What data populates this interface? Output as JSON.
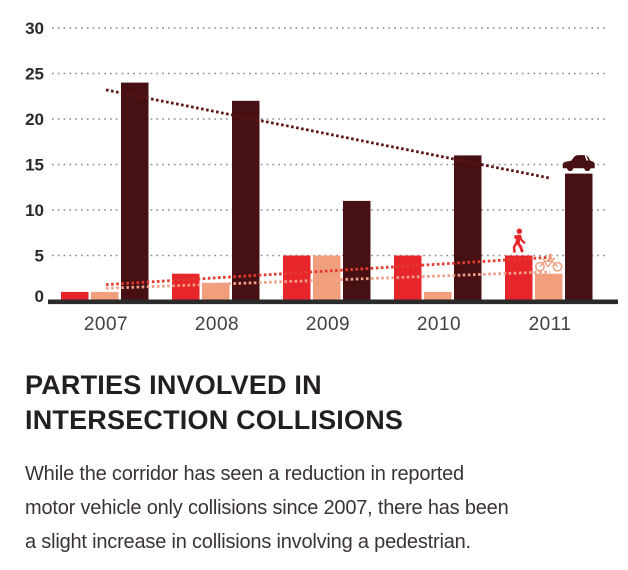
{
  "chart_data": {
    "type": "bar",
    "title": "PARTIES INVOLVED IN INTERSECTION COLLISIONS",
    "categories": [
      "2007",
      "2008",
      "2009",
      "2010",
      "2011"
    ],
    "series": [
      {
        "name": "pedestrian",
        "color": "#e7262c",
        "trend_color": "#e43a2e",
        "icon": "pedestrian-icon",
        "values": [
          1,
          3,
          5,
          5,
          5
        ]
      },
      {
        "name": "bicycle",
        "color": "#f19e7d",
        "trend_color": "#efa088",
        "icon": "bicycle-icon",
        "values": [
          1,
          2,
          5,
          1,
          3
        ]
      },
      {
        "name": "motor-vehicle",
        "color": "#471013",
        "trend_color": "#5c1415",
        "icon": "car-icon",
        "values": [
          24,
          22,
          11,
          16,
          14
        ]
      }
    ],
    "trendlines": [
      {
        "series": "motor-vehicle",
        "start_value": 23.2,
        "end_value": 13.5
      },
      {
        "series": "bicycle",
        "start_value": 1.4,
        "end_value": 3.2
      },
      {
        "series": "pedestrian",
        "start_value": 1.8,
        "end_value": 4.8
      }
    ],
    "yticks": [
      0,
      5,
      10,
      15,
      20,
      25,
      30
    ],
    "ylim": [
      0,
      30
    ],
    "xlabel": "",
    "ylabel": "",
    "grid": "dotted-horizontal",
    "legend": "none"
  },
  "colors": {
    "grid": "#8c8c8c",
    "baseline": "#2b2b2b",
    "axis_text": "#2d2929",
    "xlabel_text": "#433f40",
    "title_text": "#231f20",
    "body_text": "#3a3335"
  },
  "title": {
    "line1": "PARTIES INVOLVED IN",
    "line2": "INTERSECTION COLLISIONS"
  },
  "description": {
    "line1": "While the corridor has seen a reduction in reported",
    "line2": "motor vehicle only collisions since 2007, there has been",
    "line3": "a slight increase in collisions involving a pedestrian."
  }
}
